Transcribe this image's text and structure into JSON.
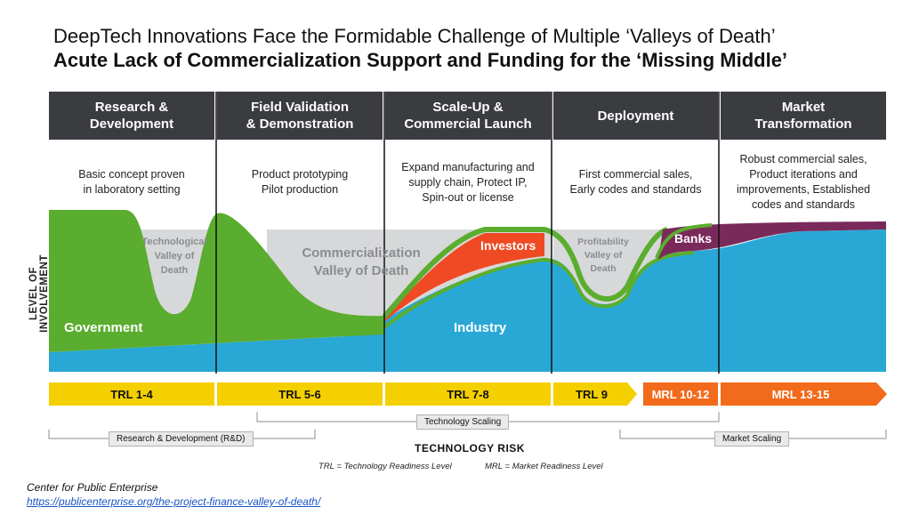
{
  "title": {
    "line1": "DeepTech Innovations Face the Formidable Challenge of Multiple ‘Valleys of Death’",
    "line2": "Acute Lack of Commercialization Support and Funding for the ‘Missing Middle’"
  },
  "stages": [
    {
      "header": "Research &\nDevelopment",
      "desc": "Basic concept proven\nin laboratory setting"
    },
    {
      "header": "Field Validation\n& Demonstration",
      "desc": "Product prototyping\nPilot production"
    },
    {
      "header": "Scale-Up &\nCommercial Launch",
      "desc": "Expand manufacturing and\nsupply chain, Protect IP,\nSpin-out or license"
    },
    {
      "header": "Deployment",
      "desc": "First commercial sales,\nEarly codes and standards"
    },
    {
      "header": "Market\nTransformation",
      "desc": "Robust commercial sales,\nProduct iterations and\nimprovements, Established\ncodes and standards"
    }
  ],
  "y_axis_label": "LEVEL OF INVOLVEMENT",
  "areas": {
    "government": "Government",
    "industry": "Industry",
    "investors": "Investors",
    "banks": "Banks",
    "tech_valley": [
      "Technological",
      "Valley of",
      "Death"
    ],
    "comm_valley": [
      "Commercialization",
      "Valley of Death"
    ],
    "profit_valley": [
      "Profitability",
      "Valley of",
      "Death"
    ]
  },
  "readiness": [
    {
      "label": "TRL 1-4",
      "color": "#f5d000"
    },
    {
      "label": "TRL 5-6",
      "color": "#f5d000"
    },
    {
      "label": "TRL 7-8",
      "color": "#f5d000"
    },
    {
      "label": "TRL 9",
      "color": "#f5d000"
    },
    {
      "label": "MRL 10-12",
      "color": "#f26a1b"
    },
    {
      "label": "MRL 13-15",
      "color": "#f26a1b"
    }
  ],
  "scaling": {
    "rd": "Research & Development (R&D)",
    "technology": "Technology Scaling",
    "market": "Market Scaling"
  },
  "technology_risk": "TECHNOLOGY RISK",
  "legend": {
    "trl": "TRL = Technology Readiness Level",
    "mrl": "MRL = Market Readiness Level"
  },
  "source": {
    "name": "Center for Public Enterprise",
    "url": "https://publicenterprise.org/the-project-finance-valley-of-death/"
  },
  "colors": {
    "header_bg": "#3a3c40",
    "government": "#5aad2e",
    "industry": "#29a8d6",
    "investors": "#ef4a23",
    "banks": "#7a2a5a",
    "valley": "#d7d8d9",
    "trl": "#f5d000",
    "mrl": "#f26a1b"
  }
}
